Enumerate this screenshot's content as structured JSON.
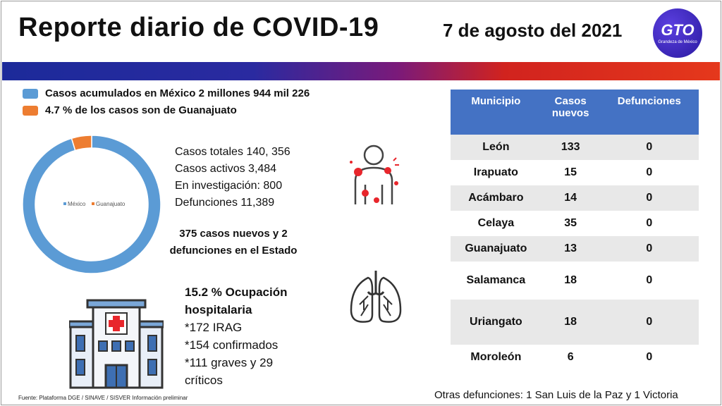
{
  "header": {
    "title": "Reporte diario de COVID-19",
    "date": "7 de agosto del 2021",
    "logo_text": "GTO",
    "logo_subtext": "Grandeza de México"
  },
  "legend": [
    {
      "label": "Casos acumulados en México 2 millones 944 mil 226",
      "color": "#5b9bd5"
    },
    {
      "label": "4.7 % de los casos  son de Guanajuato",
      "color": "#ed7d31"
    }
  ],
  "chart_data": {
    "type": "pie",
    "variant": "donut",
    "labels": [
      "México",
      "Guanajuato"
    ],
    "values": [
      95.3,
      4.7
    ],
    "colors": [
      "#5b9bd5",
      "#ed7d31"
    ],
    "legend_position": "center"
  },
  "stats": [
    "Casos totales 140, 356",
    "Casos activos 3,484",
    "En investigación: 800",
    "Defunciones 11,389"
  ],
  "new_cases": "375 casos nuevos y 2 defunciones en el Estado",
  "hospital": {
    "headline": "15.2 % Ocupación hospitalaria",
    "lines": [
      "*172 IRAG",
      "*154 confirmados",
      "*111 graves y 29 críticos"
    ]
  },
  "table": {
    "headers": [
      "Municipio",
      "Casos nuevos",
      "Defunciones"
    ],
    "rows": [
      {
        "municipio": "León",
        "casos": "133",
        "defunciones": "0"
      },
      {
        "municipio": "Irapuato",
        "casos": "15",
        "defunciones": "0"
      },
      {
        "municipio": "Acámbaro",
        "casos": "14",
        "defunciones": "0"
      },
      {
        "municipio": "Celaya",
        "casos": "35",
        "defunciones": "0"
      },
      {
        "municipio": "Guanajuato",
        "casos": "13",
        "defunciones": "0"
      },
      {
        "municipio": "Salamanca",
        "casos": "18",
        "defunciones": "0"
      },
      {
        "municipio": "Uriangato",
        "casos": "18",
        "defunciones": "0"
      },
      {
        "municipio": "Moroleón",
        "casos": "6",
        "defunciones": "0"
      }
    ]
  },
  "otras_defunciones": "Otras defunciones: 1 San Luis de la Paz y 1 Victoria",
  "source": "Fuente: Plataforma DGE / SINAVE / SISVER  Información preliminar",
  "icons": {
    "virus": "virus-symptoms-icon",
    "lungs": "lungs-icon",
    "hospital": "hospital-icon"
  }
}
